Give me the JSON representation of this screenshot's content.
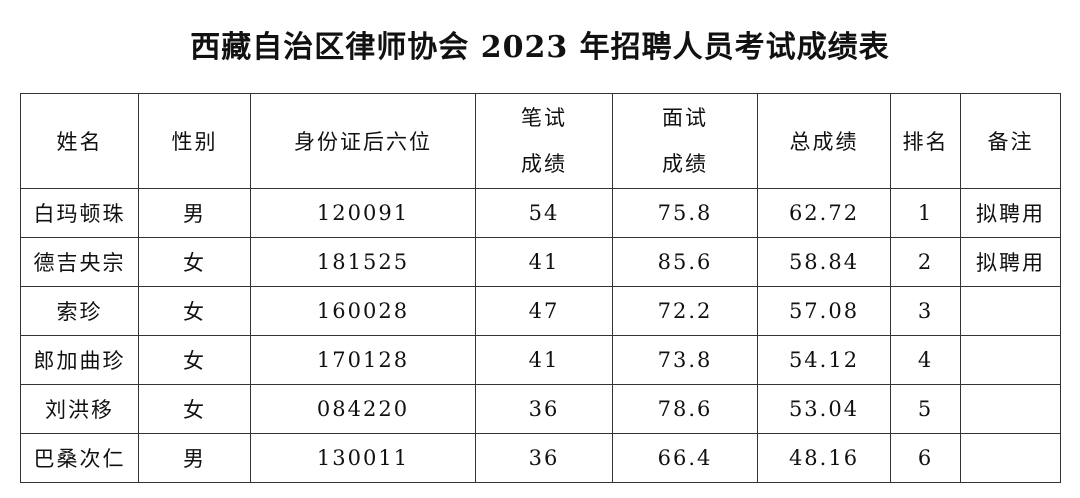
{
  "header": {
    "title": "西藏自治区律师协会 2023 年招聘人员考试成绩表"
  },
  "table": {
    "columns": [
      "姓名",
      "性别",
      "身份证后六位",
      "笔试成绩",
      "面试成绩",
      "总成绩",
      "排名",
      "备注"
    ],
    "rows": [
      [
        "白玛顿珠",
        "男",
        "120091",
        "54",
        "75.8",
        "62.72",
        "1",
        "拟聘用"
      ],
      [
        "德吉央宗",
        "女",
        "181525",
        "41",
        "85.6",
        "58.84",
        "2",
        "拟聘用"
      ],
      [
        "索珍",
        "女",
        "160028",
        "47",
        "72.2",
        "57.08",
        "3",
        null
      ],
      [
        "郎加曲珍",
        "女",
        "170128",
        "41",
        "73.8",
        "54.12",
        "4",
        null
      ],
      [
        "刘洪移",
        "女",
        "084220",
        "36",
        "78.6",
        "53.04",
        "5",
        null
      ],
      [
        "巴桑次仁",
        "男",
        "130011",
        "36",
        "66.4",
        "48.16",
        "6",
        null
      ]
    ]
  }
}
